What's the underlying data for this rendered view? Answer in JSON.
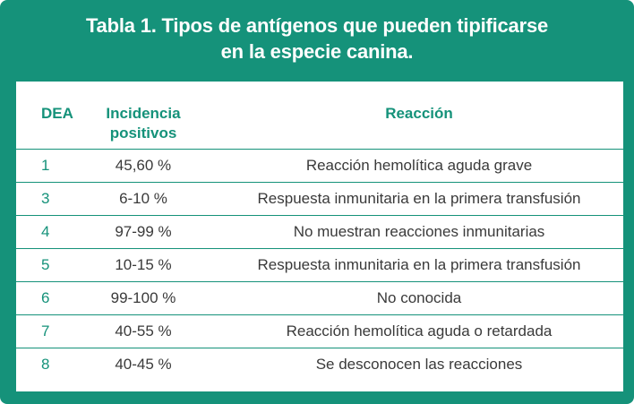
{
  "title": {
    "line1": "Tabla 1. Tipos de antígenos que pueden tipificarse",
    "line2": "en la especie canina."
  },
  "table": {
    "headers": {
      "dea": "DEA",
      "incidence_line1": "Incidencia",
      "incidence_line2": "positivos",
      "reaction": "Reacción"
    },
    "rows": [
      {
        "dea": "1",
        "incidence": "45,60 %",
        "reaction": "Reacción hemolítica aguda grave"
      },
      {
        "dea": "3",
        "incidence": "6-10 %",
        "reaction": "Respuesta inmunitaria en la primera transfusión"
      },
      {
        "dea": "4",
        "incidence": "97-99 %",
        "reaction": "No muestran reacciones inmunitarias"
      },
      {
        "dea": "5",
        "incidence": "10-15 %",
        "reaction": "Respuesta inmunitaria en la primera transfusión"
      },
      {
        "dea": "6",
        "incidence": "99-100 %",
        "reaction": "No conocida"
      },
      {
        "dea": "7",
        "incidence": "40-55 %",
        "reaction": "Reacción hemolítica aguda o retardada"
      },
      {
        "dea": "8",
        "incidence": "40-45 %",
        "reaction": "Se desconocen las reacciones"
      }
    ]
  },
  "colors": {
    "accent": "#15927a",
    "text": "#3a3a3a",
    "panel": "#ffffff"
  }
}
